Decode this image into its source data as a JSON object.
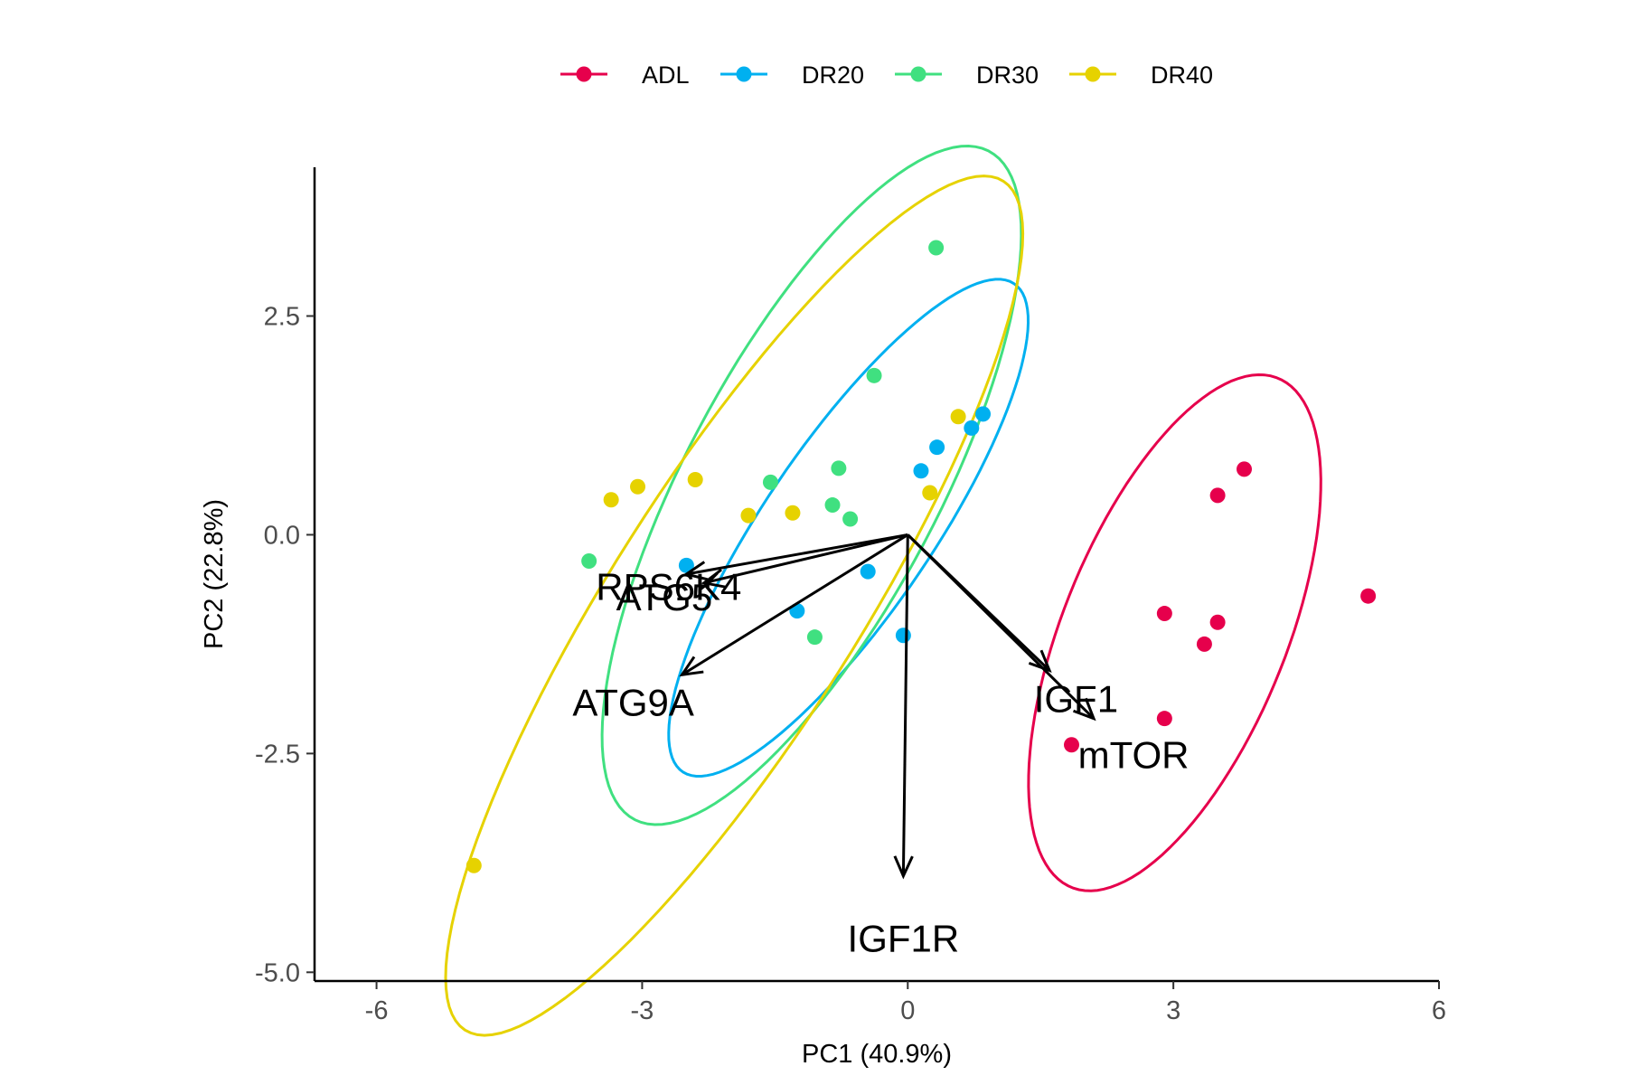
{
  "chart_data": {
    "type": "scatter",
    "xlabel": "PC1 (40.9%)",
    "ylabel": "PC2 (22.8%)",
    "xlim": [
      -6.7,
      6.0
    ],
    "ylim": [
      -5.1,
      4.2
    ],
    "x_ticks": [
      -6,
      -3,
      0,
      3,
      6
    ],
    "x_tick_labels": [
      "-6",
      "-3",
      "0",
      "3",
      "6"
    ],
    "y_ticks": [
      -5.0,
      -2.5,
      0.0,
      2.5
    ],
    "y_tick_labels": [
      "-5.0",
      "-2.5",
      "0.0",
      "2.5"
    ],
    "grid": false,
    "legend_position": "top",
    "series": [
      {
        "name": "ADL",
        "color": "#e6004c",
        "points": [
          [
            3.8,
            0.75
          ],
          [
            3.5,
            0.45
          ],
          [
            5.2,
            -0.7
          ],
          [
            2.9,
            -0.9
          ],
          [
            3.5,
            -1.0
          ],
          [
            3.35,
            -1.25
          ],
          [
            2.9,
            -2.1
          ],
          [
            1.85,
            -2.4
          ]
        ],
        "ellipse": [
          [
            5.12,
            -0.71
          ],
          [
            4.55,
            1.6
          ],
          [
            2.4,
            0.69
          ],
          [
            0.91,
            -1.53
          ],
          [
            1.49,
            -3.38
          ],
          [
            3.64,
            -2.47
          ]
        ]
      },
      {
        "name": "DR20",
        "color": "#00b0f0",
        "points": [
          [
            0.85,
            1.38
          ],
          [
            0.72,
            1.22
          ],
          [
            0.33,
            1.0
          ],
          [
            0.15,
            0.73
          ],
          [
            -2.5,
            -0.35
          ],
          [
            -0.45,
            -0.42
          ],
          [
            -1.25,
            -0.87
          ],
          [
            -0.05,
            -1.15
          ]
        ],
        "ellipse": [
          [
            1.43,
            0.92
          ],
          [
            1.36,
            2.42
          ],
          [
            -0.64,
            1.69
          ],
          [
            -2.77,
            -0.76
          ],
          [
            -2.7,
            -2.26
          ],
          [
            -0.7,
            -1.53
          ]
        ]
      },
      {
        "name": "DR30",
        "color": "#40e080",
        "points": [
          [
            0.32,
            3.28
          ],
          [
            -0.38,
            1.82
          ],
          [
            -0.78,
            0.76
          ],
          [
            -1.55,
            0.6
          ],
          [
            -0.85,
            0.34
          ],
          [
            -0.65,
            0.18
          ],
          [
            -3.6,
            -0.3
          ],
          [
            -1.05,
            -1.17
          ]
        ],
        "ellipse": [
          [
            1.5,
            1.63
          ],
          [
            1.28,
            3.55
          ],
          [
            -1.19,
            3.04
          ],
          [
            -3.67,
            -0.5
          ],
          [
            -3.45,
            -2.42
          ],
          [
            -0.98,
            -1.91
          ]
        ]
      },
      {
        "name": "DR40",
        "color": "#e6d200",
        "points": [
          [
            0.57,
            1.35
          ],
          [
            0.25,
            0.48
          ],
          [
            -2.4,
            0.63
          ],
          [
            -3.05,
            0.55
          ],
          [
            -3.35,
            0.4
          ],
          [
            -1.8,
            0.22
          ],
          [
            -1.3,
            0.25
          ],
          [
            -4.9,
            -3.78
          ]
        ],
        "ellipse": [
          [
            2.15,
            0.97
          ],
          [
            1.29,
            3.57
          ],
          [
            -2.14,
            1.42
          ],
          [
            -6.07,
            -2.59
          ],
          [
            -5.22,
            -5.18
          ],
          [
            -1.79,
            -3.04
          ]
        ]
      }
    ],
    "loadings": [
      {
        "label": "RPS6K4",
        "x": -2.5,
        "y": -0.45,
        "label_x": -2.7,
        "label_y": -0.6
      },
      {
        "label": "ATG5",
        "x": -2.3,
        "y": -0.55,
        "label_x": -2.75,
        "label_y": -0.72
      },
      {
        "label": "ATG9A",
        "x": -2.55,
        "y": -1.6,
        "label_x": -3.1,
        "label_y": -1.92
      },
      {
        "label": "IGF1",
        "x": 1.6,
        "y": -1.55,
        "label_x": 1.9,
        "label_y": -1.88
      },
      {
        "label": "mTOR",
        "x": 2.1,
        "y": -2.1,
        "label_x": 2.55,
        "label_y": -2.52
      },
      {
        "label": "IGF1R",
        "x": -0.05,
        "y": -3.9,
        "label_x": -0.05,
        "label_y": -4.62
      }
    ]
  }
}
